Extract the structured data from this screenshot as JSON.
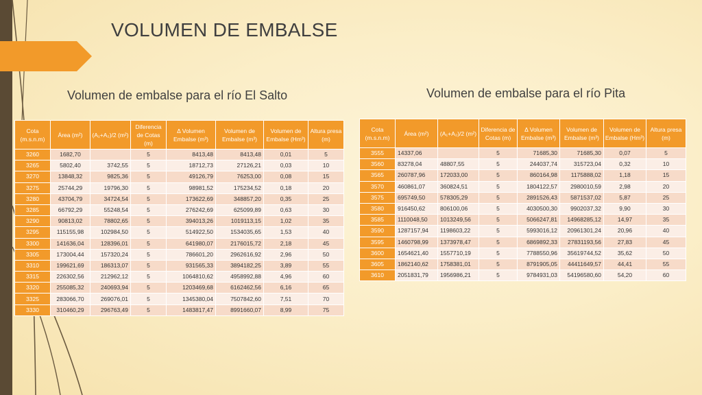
{
  "slide": {
    "title": "VOLUMEN DE EMBALSE",
    "subtitle_salto": "Volumen de embalse para el río El Salto",
    "subtitle_pita": "Volumen de embalse para el río Pita"
  },
  "colors": {
    "header": "#f29a2a",
    "row_odd": "#f7dbc9",
    "row_even": "#fbeee6",
    "accent_arrow": "#f29a2a",
    "dark_strip": "#5a4a34"
  },
  "table_salto": {
    "headers": [
      "Cota (m.s.n.m)",
      "Área (m²)",
      "(A₁+A₂)/2 (m²)",
      "Diferencia de Cotas (m)",
      "Δ Volumen Embalse (m³)",
      "Volumen de Embalse (m³)",
      "Volumen de Embalse (Hm³)",
      "Altura presa (m)"
    ],
    "rows": [
      [
        "3260",
        "1682,70",
        "",
        "5",
        "8413,48",
        "8413,48",
        "0,01",
        "5"
      ],
      [
        "3265",
        "5802,40",
        "3742,55",
        "5",
        "18712,73",
        "27126,21",
        "0,03",
        "10"
      ],
      [
        "3270",
        "13848,32",
        "9825,36",
        "5",
        "49126,79",
        "76253,00",
        "0,08",
        "15"
      ],
      [
        "3275",
        "25744,29",
        "19796,30",
        "5",
        "98981,52",
        "175234,52",
        "0,18",
        "20"
      ],
      [
        "3280",
        "43704,79",
        "34724,54",
        "5",
        "173622,69",
        "348857,20",
        "0,35",
        "25"
      ],
      [
        "3285",
        "66792,29",
        "55248,54",
        "5",
        "276242,69",
        "625099,89",
        "0,63",
        "30"
      ],
      [
        "3290",
        "90813,02",
        "78802,65",
        "5",
        "394013,26",
        "1019113,15",
        "1,02",
        "35"
      ],
      [
        "3295",
        "115155,98",
        "102984,50",
        "5",
        "514922,50",
        "1534035,65",
        "1,53",
        "40"
      ],
      [
        "3300",
        "141636,04",
        "128396,01",
        "5",
        "641980,07",
        "2176015,72",
        "2,18",
        "45"
      ],
      [
        "3305",
        "173004,44",
        "157320,24",
        "5",
        "786601,20",
        "2962616,92",
        "2,96",
        "50"
      ],
      [
        "3310",
        "199621,69",
        "186313,07",
        "5",
        "931565,33",
        "3894182,25",
        "3,89",
        "55"
      ],
      [
        "3315",
        "226302,56",
        "212962,12",
        "5",
        "1064810,62",
        "4958992,88",
        "4,96",
        "60"
      ],
      [
        "3320",
        "255085,32",
        "240693,94",
        "5",
        "1203469,68",
        "6162462,56",
        "6,16",
        "65"
      ],
      [
        "3325",
        "283066,70",
        "269076,01",
        "5",
        "1345380,04",
        "7507842,60",
        "7,51",
        "70"
      ],
      [
        "3330",
        "310460,29",
        "296763,49",
        "5",
        "1483817,47",
        "8991660,07",
        "8,99",
        "75"
      ]
    ]
  },
  "table_pita": {
    "headers": [
      "Cota (m.s.n.m)",
      "Área (m²)",
      "(A₁+A₂)/2 (m²)",
      "Diferencia de Cotas (m)",
      "Δ Volumen Embalse (m³)",
      "Volumen de Embalse (m³)",
      "Volumen de Embalse (Hm³)",
      "Altura presa (m)"
    ],
    "rows": [
      [
        "3555",
        "14337,06",
        "",
        "5",
        "71685,30",
        "71685,30",
        "0,07",
        "5"
      ],
      [
        "3560",
        "83278,04",
        "48807,55",
        "5",
        "244037,74",
        "315723,04",
        "0,32",
        "10"
      ],
      [
        "3565",
        "260787,96",
        "172033,00",
        "5",
        "860164,98",
        "1175888,02",
        "1,18",
        "15"
      ],
      [
        "3570",
        "460861,07",
        "360824,51",
        "5",
        "1804122,57",
        "2980010,59",
        "2,98",
        "20"
      ],
      [
        "3575",
        "695749,50",
        "578305,29",
        "5",
        "2891526,43",
        "5871537,02",
        "5,87",
        "25"
      ],
      [
        "3580",
        "916450,62",
        "806100,06",
        "5",
        "4030500,30",
        "9902037,32",
        "9,90",
        "30"
      ],
      [
        "3585",
        "1110048,50",
        "1013249,56",
        "5",
        "5066247,81",
        "14968285,12",
        "14,97",
        "35"
      ],
      [
        "3590",
        "1287157,94",
        "1198603,22",
        "5",
        "5993016,12",
        "20961301,24",
        "20,96",
        "40"
      ],
      [
        "3595",
        "1460798,99",
        "1373978,47",
        "5",
        "6869892,33",
        "27831193,56",
        "27,83",
        "45"
      ],
      [
        "3600",
        "1654621,40",
        "1557710,19",
        "5",
        "7788550,96",
        "35619744,52",
        "35,62",
        "50"
      ],
      [
        "3605",
        "1862140,62",
        "1758381,01",
        "5",
        "8791905,05",
        "44411649,57",
        "44,41",
        "55"
      ],
      [
        "3610",
        "2051831,79",
        "1956986,21",
        "5",
        "9784931,03",
        "54196580,60",
        "54,20",
        "60"
      ]
    ]
  }
}
